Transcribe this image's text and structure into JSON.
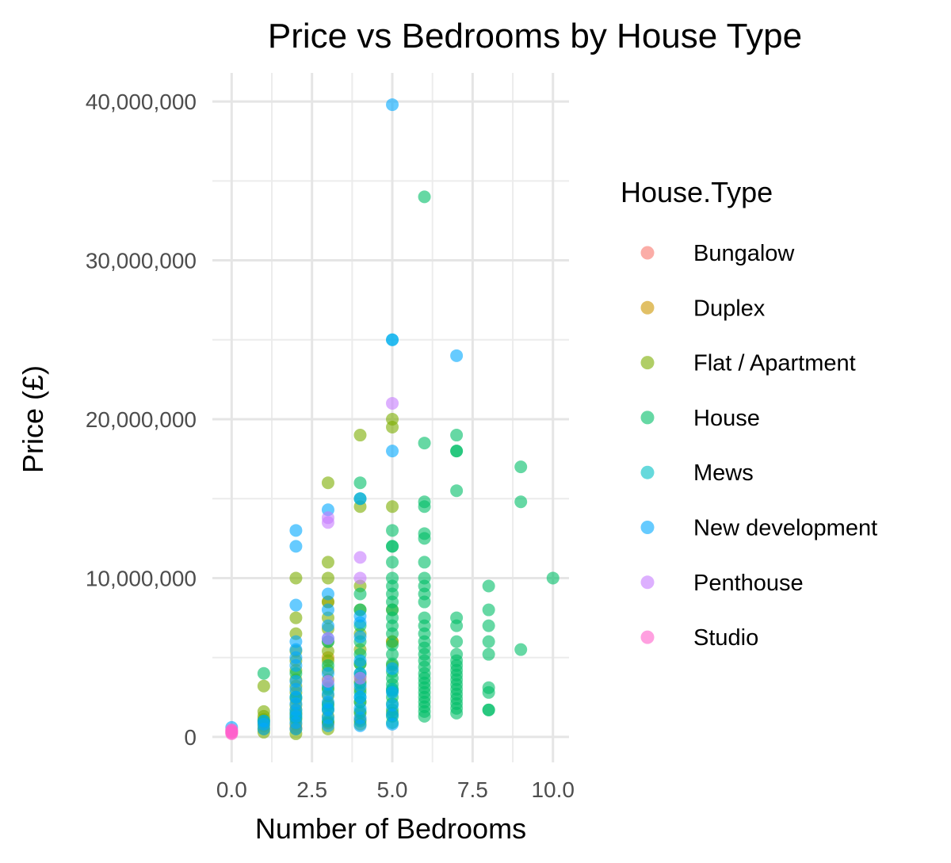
{
  "chart_data": {
    "type": "scatter",
    "title": "Price vs Bedrooms by House Type",
    "xlabel": "Number of Bedrooms",
    "ylabel": "Price (£)",
    "xlim": [
      -0.6,
      10.5
    ],
    "ylim": [
      -1600000,
      41800000
    ],
    "x_ticks": [
      0,
      2.5,
      5,
      7.5,
      10
    ],
    "x_tick_labels": [
      "0.0",
      "2.5",
      "5.0",
      "7.5",
      "10.0"
    ],
    "y_ticks": [
      0,
      10000000,
      20000000,
      30000000,
      40000000
    ],
    "y_tick_labels": [
      "0",
      "10,000,000",
      "20,000,000",
      "30,000,000",
      "40,000,000"
    ],
    "grid": true,
    "legend_title": "House.Type",
    "legend_position": "right",
    "series": [
      {
        "name": "Bungalow",
        "color": "#F8766D",
        "points": [
          [
            2,
            600000
          ],
          [
            3,
            850000
          ],
          [
            4,
            1100000
          ]
        ]
      },
      {
        "name": "Duplex",
        "color": "#CD9600",
        "points": [
          [
            3,
            8500000
          ],
          [
            3,
            5000000
          ],
          [
            4,
            3500000
          ],
          [
            5,
            6000000
          ],
          [
            2,
            1500000
          ]
        ]
      },
      {
        "name": "Flat / Apartment",
        "color": "#7CAE00",
        "points": [
          [
            1,
            300000
          ],
          [
            1,
            500000
          ],
          [
            1,
            700000
          ],
          [
            1,
            900000
          ],
          [
            1,
            1100000
          ],
          [
            1,
            1300000
          ],
          [
            1,
            1600000
          ],
          [
            1,
            3200000
          ],
          [
            2,
            200000
          ],
          [
            2,
            500000
          ],
          [
            2,
            800000
          ],
          [
            2,
            1100000
          ],
          [
            2,
            1400000
          ],
          [
            2,
            1700000
          ],
          [
            2,
            2000000
          ],
          [
            2,
            2400000
          ],
          [
            2,
            2800000
          ],
          [
            2,
            3200000
          ],
          [
            2,
            3600000
          ],
          [
            2,
            4200000
          ],
          [
            2,
            4800000
          ],
          [
            2,
            5400000
          ],
          [
            2,
            6500000
          ],
          [
            2,
            7500000
          ],
          [
            2,
            10000000
          ],
          [
            3,
            500000
          ],
          [
            3,
            900000
          ],
          [
            3,
            1300000
          ],
          [
            3,
            1700000
          ],
          [
            3,
            2100000
          ],
          [
            3,
            2600000
          ],
          [
            3,
            3100000
          ],
          [
            3,
            3600000
          ],
          [
            3,
            4200000
          ],
          [
            3,
            4800000
          ],
          [
            3,
            5400000
          ],
          [
            3,
            6000000
          ],
          [
            3,
            6800000
          ],
          [
            3,
            7500000
          ],
          [
            3,
            8500000
          ],
          [
            3,
            10000000
          ],
          [
            3,
            11000000
          ],
          [
            3,
            16000000
          ],
          [
            4,
            800000
          ],
          [
            4,
            1500000
          ],
          [
            4,
            2200000
          ],
          [
            4,
            3000000
          ],
          [
            4,
            3800000
          ],
          [
            4,
            4600000
          ],
          [
            4,
            5500000
          ],
          [
            4,
            6500000
          ],
          [
            4,
            8000000
          ],
          [
            4,
            9500000
          ],
          [
            4,
            14500000
          ],
          [
            4,
            19000000
          ],
          [
            5,
            1500000
          ],
          [
            5,
            3000000
          ],
          [
            5,
            4500000
          ],
          [
            5,
            6000000
          ],
          [
            5,
            8000000
          ],
          [
            5,
            14500000
          ],
          [
            5,
            19500000
          ],
          [
            5,
            20000000
          ]
        ]
      },
      {
        "name": "House",
        "color": "#00BE67",
        "points": [
          [
            1,
            1000000
          ],
          [
            1,
            4000000
          ],
          [
            2,
            1200000
          ],
          [
            2,
            2500000
          ],
          [
            2,
            4000000
          ],
          [
            3,
            1000000
          ],
          [
            3,
            2000000
          ],
          [
            3,
            3000000
          ],
          [
            3,
            4500000
          ],
          [
            3,
            6000000
          ],
          [
            4,
            1000000
          ],
          [
            4,
            1600000
          ],
          [
            4,
            2200000
          ],
          [
            4,
            2800000
          ],
          [
            4,
            3400000
          ],
          [
            4,
            4000000
          ],
          [
            4,
            4600000
          ],
          [
            4,
            5200000
          ],
          [
            4,
            6000000
          ],
          [
            4,
            7000000
          ],
          [
            4,
            8000000
          ],
          [
            4,
            9000000
          ],
          [
            4,
            15000000
          ],
          [
            4,
            16000000
          ],
          [
            5,
            900000
          ],
          [
            5,
            1300000
          ],
          [
            5,
            1700000
          ],
          [
            5,
            2100000
          ],
          [
            5,
            2500000
          ],
          [
            5,
            2900000
          ],
          [
            5,
            3300000
          ],
          [
            5,
            3700000
          ],
          [
            5,
            4100000
          ],
          [
            5,
            4600000
          ],
          [
            5,
            5200000
          ],
          [
            5,
            5800000
          ],
          [
            5,
            6500000
          ],
          [
            5,
            7000000
          ],
          [
            5,
            7500000
          ],
          [
            5,
            8000000
          ],
          [
            5,
            8500000
          ],
          [
            5,
            9000000
          ],
          [
            5,
            9500000
          ],
          [
            5,
            10000000
          ],
          [
            5,
            11000000
          ],
          [
            5,
            12000000
          ],
          [
            5,
            12000000
          ],
          [
            5,
            13000000
          ],
          [
            6,
            1300000
          ],
          [
            6,
            1600000
          ],
          [
            6,
            1900000
          ],
          [
            6,
            2200000
          ],
          [
            6,
            2500000
          ],
          [
            6,
            2800000
          ],
          [
            6,
            3100000
          ],
          [
            6,
            3400000
          ],
          [
            6,
            3700000
          ],
          [
            6,
            4000000
          ],
          [
            6,
            4400000
          ],
          [
            6,
            4800000
          ],
          [
            6,
            5200000
          ],
          [
            6,
            5600000
          ],
          [
            6,
            6000000
          ],
          [
            6,
            6500000
          ],
          [
            6,
            7000000
          ],
          [
            6,
            7500000
          ],
          [
            6,
            8500000
          ],
          [
            6,
            9000000
          ],
          [
            6,
            9500000
          ],
          [
            6,
            10000000
          ],
          [
            6,
            11000000
          ],
          [
            6,
            12500000
          ],
          [
            6,
            12800000
          ],
          [
            6,
            14500000
          ],
          [
            6,
            14800000
          ],
          [
            6,
            18500000
          ],
          [
            6,
            34000000
          ],
          [
            7,
            1500000
          ],
          [
            7,
            1800000
          ],
          [
            7,
            2100000
          ],
          [
            7,
            2400000
          ],
          [
            7,
            2700000
          ],
          [
            7,
            3000000
          ],
          [
            7,
            3300000
          ],
          [
            7,
            3600000
          ],
          [
            7,
            3900000
          ],
          [
            7,
            4200000
          ],
          [
            7,
            4500000
          ],
          [
            7,
            4800000
          ],
          [
            7,
            5200000
          ],
          [
            7,
            6000000
          ],
          [
            7,
            7000000
          ],
          [
            7,
            7500000
          ],
          [
            7,
            15500000
          ],
          [
            7,
            18000000
          ],
          [
            7,
            18000000
          ],
          [
            7,
            19000000
          ],
          [
            8,
            1700000
          ],
          [
            8,
            1700000
          ],
          [
            8,
            2800000
          ],
          [
            8,
            3100000
          ],
          [
            8,
            5200000
          ],
          [
            8,
            6000000
          ],
          [
            8,
            7000000
          ],
          [
            8,
            8000000
          ],
          [
            8,
            9500000
          ],
          [
            9,
            5500000
          ],
          [
            9,
            14800000
          ],
          [
            9,
            17000000
          ],
          [
            10,
            10000000
          ]
        ]
      },
      {
        "name": "Mews",
        "color": "#00BFC4",
        "points": [
          [
            2,
            1500000
          ],
          [
            3,
            1800000
          ],
          [
            4,
            2500000
          ],
          [
            5,
            3000000
          ],
          [
            5,
            25000000
          ]
        ]
      },
      {
        "name": "New development",
        "color": "#00A9FF",
        "points": [
          [
            0,
            600000
          ],
          [
            1,
            500000
          ],
          [
            1,
            800000
          ],
          [
            1,
            1000000
          ],
          [
            2,
            500000
          ],
          [
            2,
            900000
          ],
          [
            2,
            1300000
          ],
          [
            2,
            1700000
          ],
          [
            2,
            2100000
          ],
          [
            2,
            2500000
          ],
          [
            2,
            3000000
          ],
          [
            2,
            3500000
          ],
          [
            2,
            4500000
          ],
          [
            2,
            5000000
          ],
          [
            2,
            5500000
          ],
          [
            2,
            6000000
          ],
          [
            2,
            8300000
          ],
          [
            2,
            12000000
          ],
          [
            2,
            13000000
          ],
          [
            3,
            700000
          ],
          [
            3,
            1200000
          ],
          [
            3,
            1700000
          ],
          [
            3,
            2200000
          ],
          [
            3,
            2700000
          ],
          [
            3,
            3300000
          ],
          [
            3,
            4000000
          ],
          [
            3,
            6200000
          ],
          [
            3,
            7000000
          ],
          [
            3,
            8000000
          ],
          [
            3,
            9000000
          ],
          [
            3,
            14300000
          ],
          [
            4,
            700000
          ],
          [
            4,
            1200000
          ],
          [
            4,
            1800000
          ],
          [
            4,
            2500000
          ],
          [
            4,
            3200000
          ],
          [
            4,
            4000000
          ],
          [
            4,
            4800000
          ],
          [
            4,
            6300000
          ],
          [
            4,
            7200000
          ],
          [
            4,
            7600000
          ],
          [
            4,
            15000000
          ],
          [
            5,
            800000
          ],
          [
            5,
            1400000
          ],
          [
            5,
            2000000
          ],
          [
            5,
            2800000
          ],
          [
            5,
            4300000
          ],
          [
            5,
            18000000
          ],
          [
            5,
            25000000
          ],
          [
            5,
            39800000
          ],
          [
            7,
            24000000
          ]
        ]
      },
      {
        "name": "Penthouse",
        "color": "#C77CFF",
        "points": [
          [
            3,
            3500000
          ],
          [
            3,
            6200000
          ],
          [
            3,
            13500000
          ],
          [
            3,
            13800000
          ],
          [
            4,
            3700000
          ],
          [
            4,
            10000000
          ],
          [
            4,
            11300000
          ],
          [
            5,
            21000000
          ]
        ]
      },
      {
        "name": "Studio",
        "color": "#FF61CC",
        "points": [
          [
            0,
            200000
          ],
          [
            0,
            250000
          ],
          [
            0,
            300000
          ],
          [
            0,
            350000
          ],
          [
            0,
            400000
          ],
          [
            0,
            450000
          ]
        ]
      }
    ]
  }
}
